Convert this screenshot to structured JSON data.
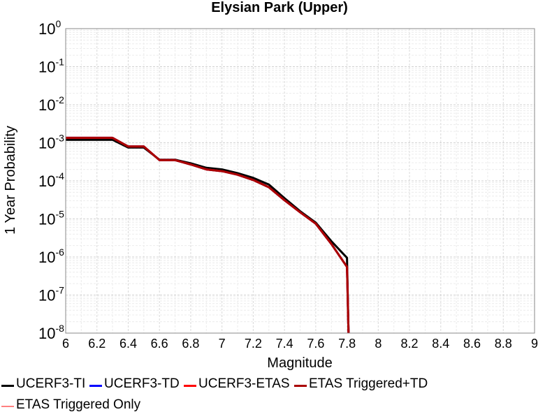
{
  "chart_data": {
    "type": "line",
    "title": "Elysian Park (Upper)",
    "xlabel": "Magnitude",
    "ylabel": "1 Year Probability",
    "xlim": [
      6,
      9
    ],
    "ylim": [
      1e-08,
      1
    ],
    "yscale": "log",
    "grid": true,
    "legend_position": "bottom",
    "x_ticks": [
      "6",
      "6.2",
      "6.4",
      "6.6",
      "6.8",
      "7",
      "7.2",
      "7.4",
      "7.6",
      "7.8",
      "8",
      "8.2",
      "8.4",
      "8.6",
      "8.8",
      "9"
    ],
    "y_ticks": [
      {
        "base": "10",
        "exp": "0"
      },
      {
        "base": "10",
        "exp": "-1"
      },
      {
        "base": "10",
        "exp": "-2"
      },
      {
        "base": "10",
        "exp": "-3"
      },
      {
        "base": "10",
        "exp": "-4"
      },
      {
        "base": "10",
        "exp": "-5"
      },
      {
        "base": "10",
        "exp": "-6"
      },
      {
        "base": "10",
        "exp": "-7"
      },
      {
        "base": "10",
        "exp": "-8"
      }
    ],
    "series": [
      {
        "name": "UCERF3-TI",
        "color": "#000000",
        "x": [
          6.0,
          6.1,
          6.2,
          6.3,
          6.4,
          6.5,
          6.6,
          6.7,
          6.8,
          6.9,
          7.0,
          7.1,
          7.2,
          7.3,
          7.4,
          7.5,
          7.6,
          7.7,
          7.8,
          7.81
        ],
        "y": [
          0.0012,
          0.0012,
          0.0012,
          0.0012,
          0.00075,
          0.00075,
          0.00036,
          0.00036,
          0.00029,
          0.00022,
          0.0002,
          0.00016,
          0.00012,
          8e-05,
          3.5e-05,
          1.6e-05,
          8e-06,
          2.6e-06,
          9.5e-07,
          1e-08
        ]
      },
      {
        "name": "UCERF3-TD",
        "color": "#0000ff",
        "x": [
          6.0,
          6.1,
          6.2,
          6.3,
          6.4,
          6.5,
          6.6,
          6.7,
          6.8,
          6.9,
          7.0,
          7.1,
          7.2,
          7.3,
          7.4,
          7.5,
          7.6,
          7.7,
          7.8,
          7.81
        ],
        "y": [
          0.00135,
          0.00135,
          0.00135,
          0.00135,
          0.0008,
          0.0008,
          0.00035,
          0.00035,
          0.00027,
          0.0002,
          0.00018,
          0.000145,
          0.000105,
          6.8e-05,
          3.1e-05,
          1.5e-05,
          7.5e-06,
          2.2e-06,
          5.5e-07,
          1e-08
        ]
      },
      {
        "name": "UCERF3-ETAS",
        "color": "#ff0000",
        "x": [
          6.0,
          6.1,
          6.2,
          6.3,
          6.4,
          6.5,
          6.6,
          6.7,
          6.8,
          6.9,
          7.0,
          7.1,
          7.2,
          7.3,
          7.4,
          7.5,
          7.6,
          7.7,
          7.8,
          7.81
        ],
        "y": [
          0.00135,
          0.00135,
          0.00135,
          0.00135,
          0.0008,
          0.0008,
          0.00035,
          0.00035,
          0.00027,
          0.0002,
          0.00018,
          0.000145,
          0.000105,
          6.8e-05,
          3.1e-05,
          1.5e-05,
          7.5e-06,
          2.2e-06,
          5.5e-07,
          1e-08
        ]
      },
      {
        "name": "ETAS Triggered+TD",
        "color": "#aa0000",
        "x": [
          6.0,
          6.1,
          6.2,
          6.3,
          6.4,
          6.5,
          6.6,
          6.7,
          6.8,
          6.9,
          7.0,
          7.1,
          7.2,
          7.3,
          7.4,
          7.5,
          7.6,
          7.7,
          7.8,
          7.81
        ],
        "y": [
          0.00135,
          0.00135,
          0.00135,
          0.00135,
          0.0008,
          0.0008,
          0.00035,
          0.00035,
          0.00027,
          0.0002,
          0.00018,
          0.000145,
          0.000105,
          6.8e-05,
          3.1e-05,
          1.5e-05,
          7.5e-06,
          2.2e-06,
          5.5e-07,
          1e-08
        ]
      },
      {
        "name": "ETAS Triggered Only",
        "color": "#ff8080",
        "x": [],
        "y": []
      }
    ]
  }
}
